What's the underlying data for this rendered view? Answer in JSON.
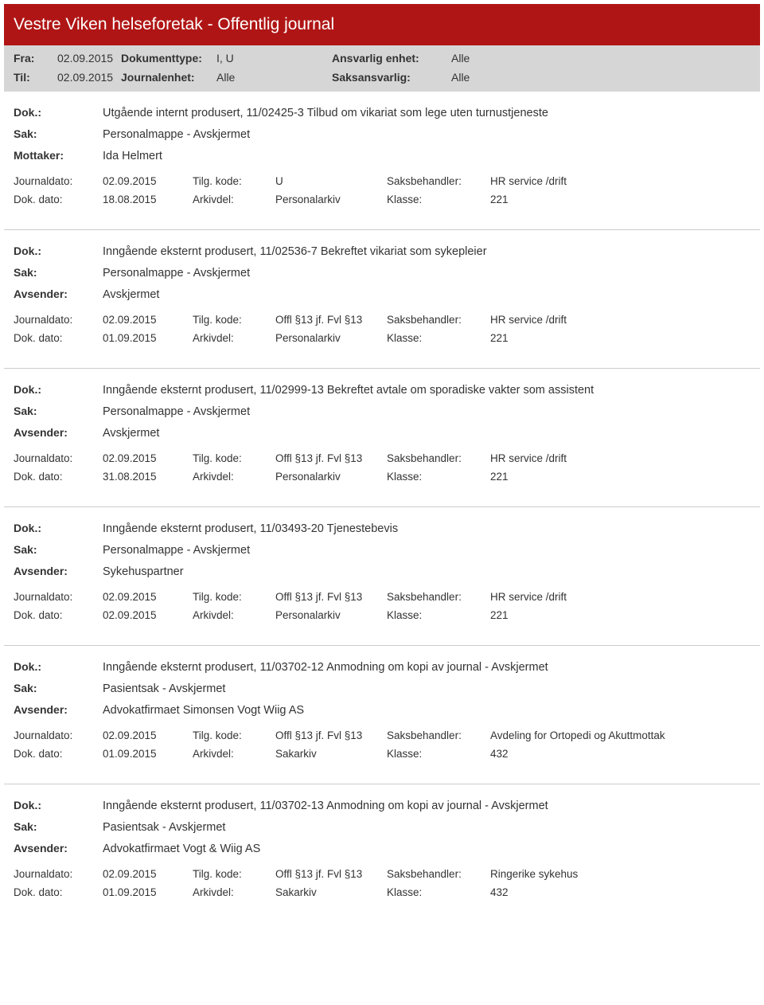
{
  "header": {
    "title": "Vestre Viken helseforetak - Offentlig journal"
  },
  "filters": {
    "fra_label": "Fra:",
    "fra_value": "02.09.2015",
    "til_label": "Til:",
    "til_value": "02.09.2015",
    "dokumenttype_label": "Dokumenttype:",
    "dokumenttype_value": "I, U",
    "journalenhet_label": "Journalenhet:",
    "journalenhet_value": "Alle",
    "ansvarlig_label": "Ansvarlig enhet:",
    "ansvarlig_value": "Alle",
    "saksansvarlig_label": "Saksansvarlig:",
    "saksansvarlig_value": "Alle"
  },
  "labels": {
    "dok": "Dok.:",
    "sak": "Sak:",
    "mottaker": "Mottaker:",
    "avsender": "Avsender:",
    "journaldato": "Journaldato:",
    "dokdato": "Dok. dato:",
    "tilgkode": "Tilg. kode:",
    "arkivdel": "Arkivdel:",
    "saksbehandler": "Saksbehandler:",
    "klasse": "Klasse:"
  },
  "entries": [
    {
      "dok": "Utgående internt produsert, 11/02425-3 Tilbud om vikariat som lege uten turnustjeneste",
      "sak": "Personalmappe - Avskjermet",
      "party_label": "Mottaker:",
      "party_value": "Ida Helmert",
      "journaldato": "02.09.2015",
      "tilgkode": "U",
      "saksbehandler": "HR service /drift",
      "dokdato": "18.08.2015",
      "arkivdel": "Personalarkiv",
      "klasse": "221"
    },
    {
      "dok": "Inngående eksternt produsert, 11/02536-7 Bekreftet vikariat som sykepleier",
      "sak": "Personalmappe - Avskjermet",
      "party_label": "Avsender:",
      "party_value": "Avskjermet",
      "journaldato": "02.09.2015",
      "tilgkode": "Offl §13 jf. Fvl §13",
      "saksbehandler": "HR service /drift",
      "dokdato": "01.09.2015",
      "arkivdel": "Personalarkiv",
      "klasse": "221"
    },
    {
      "dok": "Inngående eksternt produsert, 11/02999-13 Bekreftet avtale om sporadiske vakter som assistent",
      "sak": "Personalmappe - Avskjermet",
      "party_label": "Avsender:",
      "party_value": "Avskjermet",
      "journaldato": "02.09.2015",
      "tilgkode": "Offl §13 jf. Fvl §13",
      "saksbehandler": "HR service /drift",
      "dokdato": "31.08.2015",
      "arkivdel": "Personalarkiv",
      "klasse": "221"
    },
    {
      "dok": "Inngående eksternt produsert, 11/03493-20 Tjenestebevis",
      "sak": "Personalmappe - Avskjermet",
      "party_label": "Avsender:",
      "party_value": "Sykehuspartner",
      "journaldato": "02.09.2015",
      "tilgkode": "Offl §13 jf. Fvl §13",
      "saksbehandler": "HR service /drift",
      "dokdato": "02.09.2015",
      "arkivdel": "Personalarkiv",
      "klasse": "221"
    },
    {
      "dok": "Inngående eksternt produsert, 11/03702-12 Anmodning om kopi av journal - Avskjermet",
      "sak": "Pasientsak - Avskjermet",
      "party_label": "Avsender:",
      "party_value": "Advokatfirmaet Simonsen Vogt Wiig AS",
      "journaldato": "02.09.2015",
      "tilgkode": "Offl §13 jf. Fvl §13",
      "saksbehandler": "Avdeling for Ortopedi og Akuttmottak",
      "dokdato": "01.09.2015",
      "arkivdel": "Sakarkiv",
      "klasse": "432"
    },
    {
      "dok": "Inngående eksternt produsert, 11/03702-13 Anmodning om kopi av journal - Avskjermet",
      "sak": "Pasientsak - Avskjermet",
      "party_label": "Avsender:",
      "party_value": "Advokatfirmaet Vogt & Wiig AS",
      "journaldato": "02.09.2015",
      "tilgkode": "Offl §13 jf. Fvl §13",
      "saksbehandler": "Ringerike sykehus",
      "dokdato": "01.09.2015",
      "arkivdel": "Sakarkiv",
      "klasse": "432"
    }
  ]
}
